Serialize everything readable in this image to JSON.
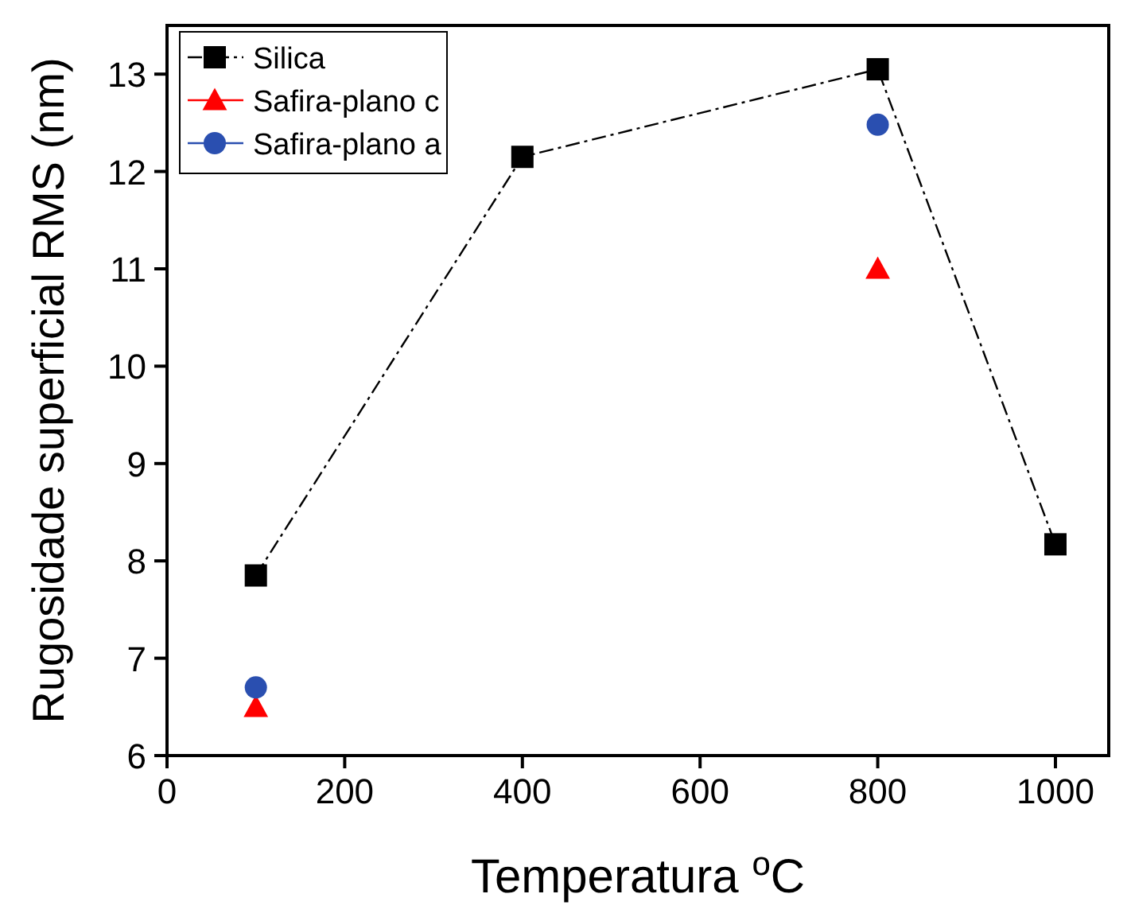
{
  "chart_data": {
    "type": "scatter",
    "xlabel": "Temperatura $^{o}$C",
    "ylabel": "Rugosidade superficial RMS (nm)",
    "xlim": [
      0,
      1060
    ],
    "xticks": [
      0,
      200,
      400,
      600,
      800,
      1000
    ],
    "ylim": [
      6,
      13.5
    ],
    "yticks": [
      6,
      7,
      8,
      9,
      10,
      11,
      12,
      13
    ],
    "legend": "top left",
    "grid": false,
    "series": [
      {
        "name": "Silica",
        "type": "line",
        "color": "#000000",
        "marker": "square",
        "line_style": "dashed",
        "x": [
          100,
          400,
          800,
          1000
        ],
        "values": [
          7.85,
          12.15,
          13.05,
          8.17
        ]
      },
      {
        "name": "Safira-plano c",
        "color": "#ff0000",
        "marker": "triangle",
        "x": [
          100,
          800
        ],
        "values": [
          6.5,
          11.0
        ]
      },
      {
        "name": "Safira-plano a",
        "color": "#2a4fb0",
        "marker": "circle",
        "x": [
          100,
          800
        ],
        "values": [
          6.7,
          12.48
        ]
      }
    ]
  }
}
